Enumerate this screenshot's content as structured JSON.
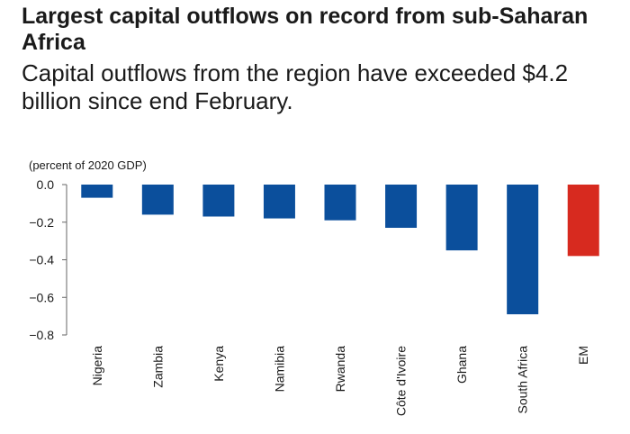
{
  "header": {
    "title": "Largest capital outflows on record from sub-Saharan Africa",
    "subtitle": "Capital outflows from the region have exceeded $4.2 billion since end February."
  },
  "chart_data": {
    "type": "bar",
    "ylabel": "(percent of 2020 GDP)",
    "xlabel": "",
    "categories": [
      "Nigeria",
      "Zambia",
      "Kenya",
      "Namibia",
      "Rwanda",
      "Côte d'Ivoire",
      "Ghana",
      "South Africa",
      "EM"
    ],
    "values": [
      -0.07,
      -0.16,
      -0.17,
      -0.18,
      -0.19,
      -0.23,
      -0.35,
      -0.69,
      -0.38
    ],
    "ylim": [
      -0.8,
      0.0
    ],
    "yticks": [
      0.0,
      -0.2,
      -0.4,
      -0.6,
      -0.8
    ],
    "ytick_labels": [
      "0.0",
      "−0.2",
      "−0.4",
      "−0.6",
      "−0.8"
    ],
    "grid": false,
    "colors": {
      "default": "#0b4f9c",
      "highlight": "#d72a1f",
      "highlight_category": "EM"
    }
  }
}
